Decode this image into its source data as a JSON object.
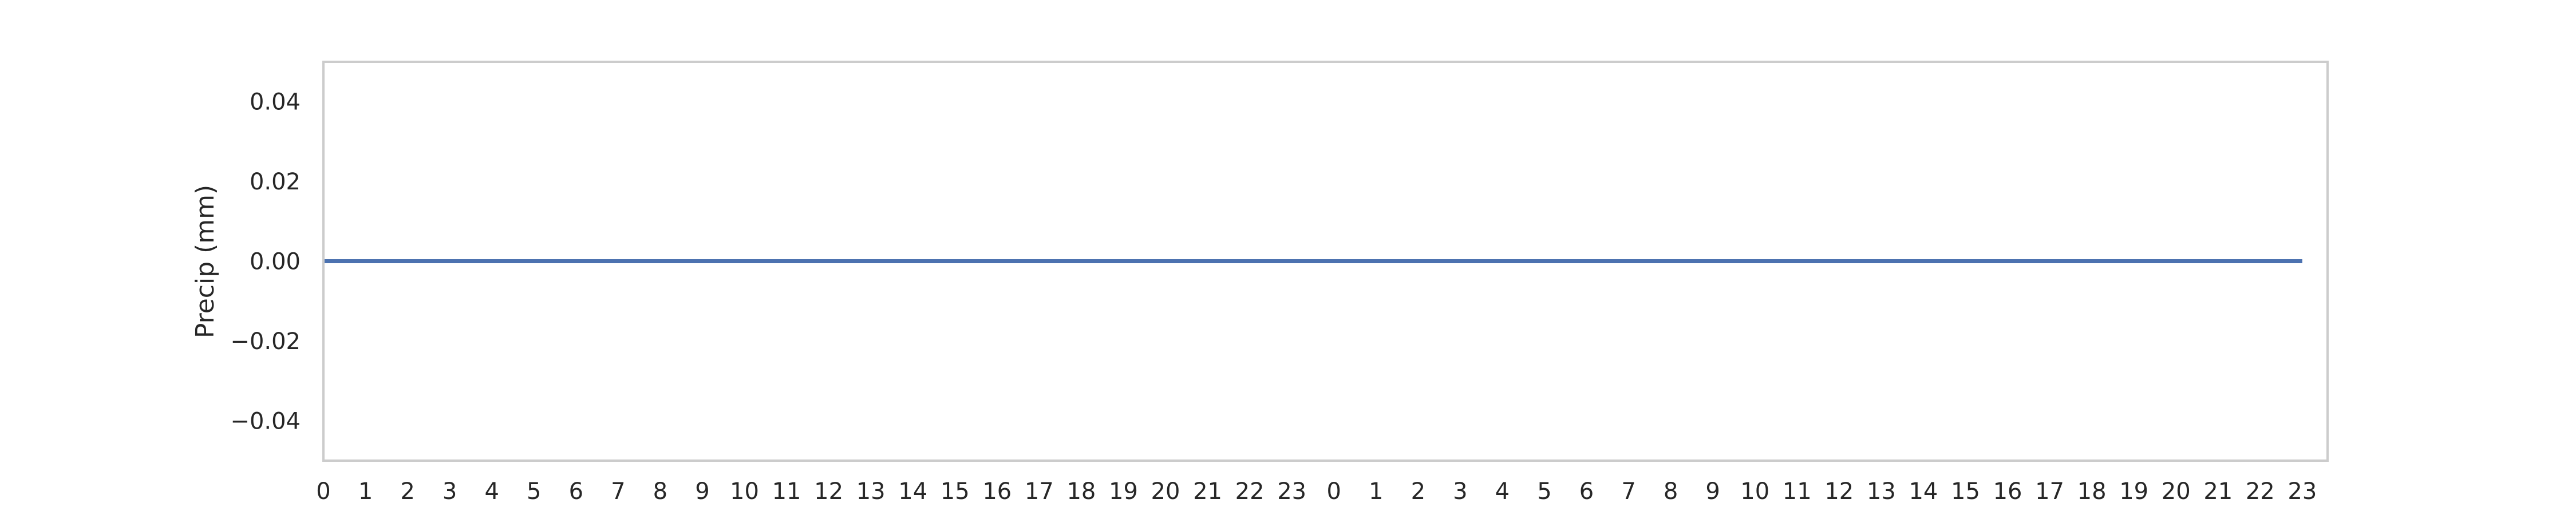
{
  "chart_data": {
    "type": "line",
    "title": "",
    "xlabel": "",
    "ylabel": "Precip (mm)",
    "x": [
      0,
      1,
      2,
      3,
      4,
      5,
      6,
      7,
      8,
      9,
      10,
      11,
      12,
      13,
      14,
      15,
      16,
      17,
      18,
      19,
      20,
      21,
      22,
      23,
      24,
      25,
      26,
      27,
      28,
      29,
      30,
      31,
      32,
      33,
      34,
      35,
      36,
      37,
      38,
      39,
      40,
      41,
      42,
      43,
      44,
      45,
      46,
      47
    ],
    "xticklabels": [
      "0",
      "1",
      "2",
      "3",
      "4",
      "5",
      "6",
      "7",
      "8",
      "9",
      "10",
      "11",
      "12",
      "13",
      "14",
      "15",
      "16",
      "17",
      "18",
      "19",
      "20",
      "21",
      "22",
      "23",
      "0",
      "1",
      "2",
      "3",
      "4",
      "5",
      "6",
      "7",
      "8",
      "9",
      "10",
      "11",
      "12",
      "13",
      "14",
      "15",
      "16",
      "17",
      "18",
      "19",
      "20",
      "21",
      "22",
      "23"
    ],
    "xlim": [
      0,
      47.6
    ],
    "ylim": [
      -0.05,
      0.05
    ],
    "yticks": [
      -0.04,
      -0.02,
      0.0,
      0.02,
      0.04
    ],
    "yticklabels": [
      "−0.04",
      "−0.02",
      "0.00",
      "0.02",
      "0.04"
    ],
    "grid": false,
    "series": [
      {
        "values": [
          0,
          0,
          0,
          0,
          0,
          0,
          0,
          0,
          0,
          0,
          0,
          0,
          0,
          0,
          0,
          0,
          0,
          0,
          0,
          0,
          0,
          0,
          0,
          0,
          0,
          0,
          0,
          0,
          0,
          0,
          0,
          0,
          0,
          0,
          0,
          0,
          0,
          0,
          0,
          0,
          0,
          0,
          0,
          0,
          0,
          0,
          0,
          0
        ],
        "color": "#4C72B0"
      }
    ],
    "frame_color": "#cccccc"
  }
}
